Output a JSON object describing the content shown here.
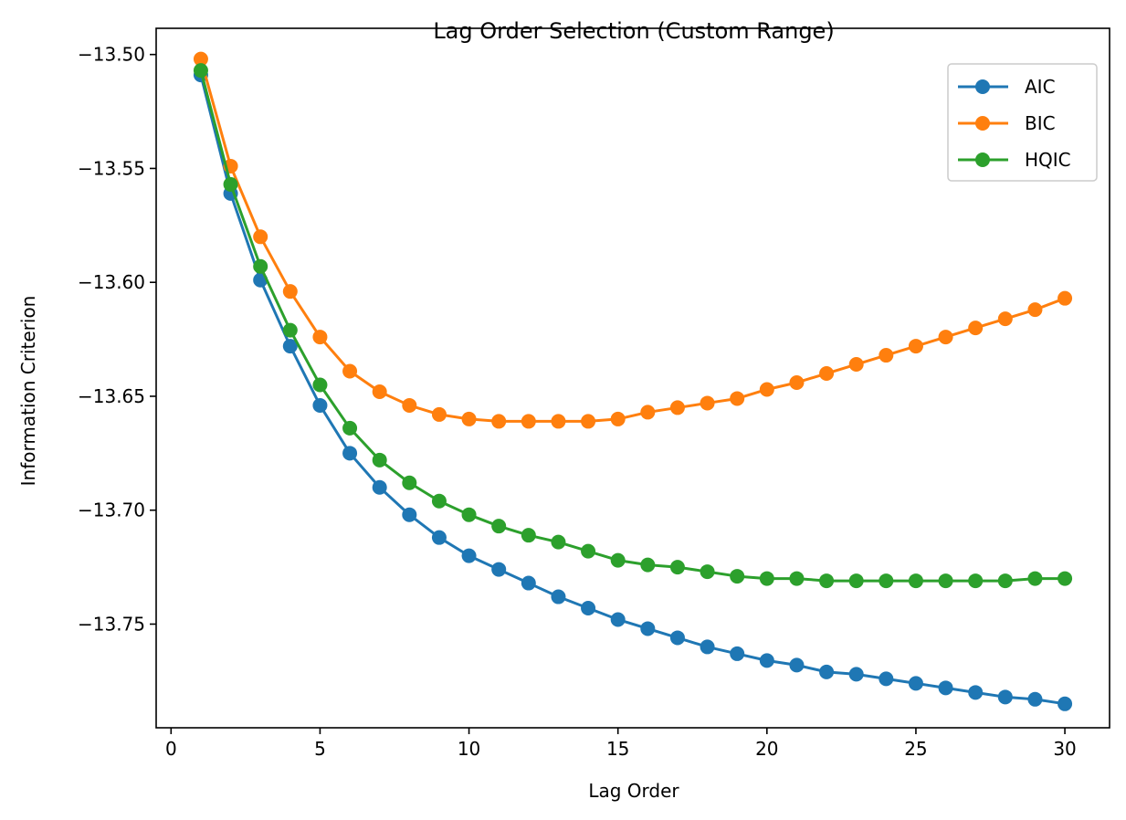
{
  "chart_data": {
    "type": "line",
    "title": "Lag Order Selection (Custom Range)",
    "xlabel": "Lag Order",
    "ylabel": "Information Criterion",
    "xlim": [
      -0.5,
      31.5
    ],
    "ylim": [
      -13.7955,
      -13.4885
    ],
    "xticks": [
      0,
      5,
      10,
      15,
      20,
      25,
      30
    ],
    "yticks": [
      -13.5,
      -13.55,
      -13.6,
      -13.65,
      -13.7,
      -13.75
    ],
    "ytick_labels": [
      "−13.50",
      "−13.55",
      "−13.60",
      "−13.65",
      "−13.70",
      "−13.75"
    ],
    "grid": false,
    "legend_position": "top-right",
    "marker": "circle",
    "x": [
      1,
      2,
      3,
      4,
      5,
      6,
      7,
      8,
      9,
      10,
      11,
      12,
      13,
      14,
      15,
      16,
      17,
      18,
      19,
      20,
      21,
      22,
      23,
      24,
      25,
      26,
      27,
      28,
      29,
      30
    ],
    "series": [
      {
        "name": "AIC",
        "color": "#1f77b4",
        "values": [
          -13.509,
          -13.561,
          -13.599,
          -13.628,
          -13.654,
          -13.675,
          -13.69,
          -13.702,
          -13.712,
          -13.72,
          -13.726,
          -13.732,
          -13.738,
          -13.743,
          -13.748,
          -13.752,
          -13.756,
          -13.76,
          -13.763,
          -13.766,
          -13.768,
          -13.771,
          -13.772,
          -13.774,
          -13.776,
          -13.778,
          -13.78,
          -13.782,
          -13.783,
          -13.785
        ]
      },
      {
        "name": "BIC",
        "color": "#ff7f0e",
        "values": [
          -13.502,
          -13.549,
          -13.58,
          -13.604,
          -13.624,
          -13.639,
          -13.648,
          -13.654,
          -13.658,
          -13.66,
          -13.661,
          -13.661,
          -13.661,
          -13.661,
          -13.66,
          -13.657,
          -13.655,
          -13.653,
          -13.651,
          -13.647,
          -13.644,
          -13.64,
          -13.636,
          -13.632,
          -13.628,
          -13.624,
          -13.62,
          -13.616,
          -13.612,
          -13.607
        ]
      },
      {
        "name": "HQIC",
        "color": "#2ca02c",
        "values": [
          -13.507,
          -13.557,
          -13.593,
          -13.621,
          -13.645,
          -13.664,
          -13.678,
          -13.688,
          -13.696,
          -13.702,
          -13.707,
          -13.711,
          -13.714,
          -13.718,
          -13.722,
          -13.724,
          -13.725,
          -13.727,
          -13.729,
          -13.73,
          -13.73,
          -13.731,
          -13.731,
          -13.731,
          -13.731,
          -13.731,
          -13.731,
          -13.731,
          -13.73,
          -13.73
        ]
      }
    ]
  }
}
